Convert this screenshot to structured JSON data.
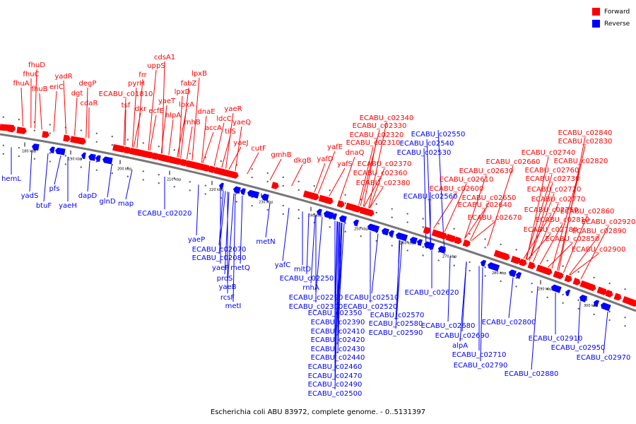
{
  "caption": "Escherichia coli ABU 83972, complete genome. - 0..5131397",
  "colors": {
    "forward": "#ff0000",
    "reverse": "#0000ff",
    "backbone": "#777777"
  },
  "legend": [
    {
      "label": "Forward",
      "strand": "forward"
    },
    {
      "label": "Reverse",
      "strand": "reverse"
    }
  ],
  "ticks": [
    "180 kbp",
    "190 kbp",
    "200 kbp",
    "210 kbp",
    "220 kbp",
    "230 kbp",
    "240 kbp",
    "250 kbp",
    "260 kbp",
    "270 kbp",
    "280 kbp",
    "290 kbp",
    "300 kbp"
  ],
  "forward_genes": [
    "fhuD",
    "fhuC",
    "fhuA",
    "fhuB",
    "yadR",
    "eriC",
    "dgt",
    "degP",
    "cdaR",
    "cdsA1",
    "uppS",
    "frr",
    "pyrH",
    "ECABU_c01810",
    "tsf",
    "dxr",
    "ecfE",
    "yaeT",
    "hlpA",
    "lpxD",
    "lpxA",
    "fabZ",
    "lpxB",
    "rnhB",
    "dnaE",
    "accA",
    "ldcC",
    "tilS",
    "yaeR",
    "yaeQ",
    "yaeJ",
    "cutF",
    "gmhB",
    "dkgB",
    "yafD",
    "yafE",
    "yafS",
    "dnaQ",
    "ECABU_c02310",
    "ECABU_c02320",
    "ECABU_c02330",
    "ECABU_c02340",
    "ECABU_c02360",
    "ECABU_c02370",
    "ECABU_c02380",
    "ECABU_c02600",
    "ECABU_c02610",
    "ECABU_c02630",
    "ECABU_c02640",
    "ECABU_c02650",
    "ECABU_c02660",
    "ECABU_c02670",
    "ECABU_c02720",
    "ECABU_c02730",
    "ECABU_c02740",
    "ECABU_c02750",
    "ECABU_c02760",
    "ECABU_c02770",
    "ECABU_c02780",
    "ECABU_c02810",
    "ECABU_c02820",
    "ECABU_c02830",
    "ECABU_c02840",
    "ECABU_c02850",
    "ECABU_c02860",
    "ECABU_c02890",
    "ECABU_c02900",
    "ECABU_c02920"
  ],
  "reverse_genes": [
    "hemL",
    "yadS",
    "btuF",
    "pfs",
    "yaeH",
    "dapD",
    "glnD",
    "map",
    "ECABU_c02020",
    "yaeP",
    "ECABU_c02070",
    "ECABU_c02080",
    "yaeF",
    "metQ",
    "proS",
    "yaeB",
    "rcsF",
    "metI",
    "metN",
    "yafC",
    "mltD",
    "ECABU_c02250",
    "rnhA",
    "ECABU_c02290",
    "ECABU_c02300",
    "ECABU_c02350",
    "ECABU_c02390",
    "ECABU_c02410",
    "ECABU_c02420",
    "ECABU_c02430",
    "ECABU_c02440",
    "ECABU_c02460",
    "ECABU_c02470",
    "ECABU_c02490",
    "ECABU_c02500",
    "ECABU_c02510",
    "ECABU_c02520",
    "ECABU_c02530",
    "ECABU_c02540",
    "ECABU_c02550",
    "ECABU_c02560",
    "ECABU_c02570",
    "ECABU_c02580",
    "ECABU_c02590",
    "ECABU_c02620",
    "ECABU_c02680",
    "ECABU_c02690",
    "alpA",
    "ECABU_c02710",
    "ECABU_c02790",
    "ECABU_c02800",
    "ECABU_c02880",
    "ECABU_c02910",
    "ECABU_c02950",
    "ECABU_c02970"
  ]
}
